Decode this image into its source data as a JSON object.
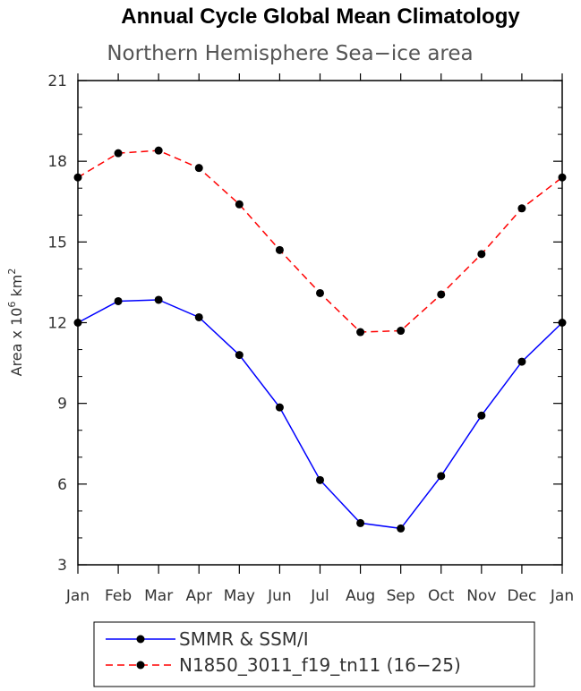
{
  "chart_data": {
    "type": "line",
    "title": "Annual Cycle Global Mean Climatology",
    "subtitle": "Northern Hemisphere Sea−ice area",
    "ylabel": {
      "prefix": "Area x 10",
      "exp1": "6",
      "mid": " km",
      "exp2": "2"
    },
    "ylim": [
      3,
      21
    ],
    "yticks": [
      "3",
      "6",
      "9",
      "12",
      "15",
      "18",
      "21"
    ],
    "categories": [
      "Jan",
      "Feb",
      "Mar",
      "Apr",
      "May",
      "Jun",
      "Jul",
      "Aug",
      "Sep",
      "Oct",
      "Nov",
      "Dec",
      "Jan"
    ],
    "series": [
      {
        "name": "SMMR & SSM/I",
        "color": "#0000ff",
        "dash": "solid",
        "values": [
          12.0,
          12.8,
          12.85,
          12.2,
          10.8,
          8.85,
          6.15,
          4.55,
          4.35,
          6.3,
          8.55,
          10.55,
          12.0
        ]
      },
      {
        "name": "N1850_3011_f19_tn11 (16−25)",
        "color": "#ff0000",
        "dash": "dashed",
        "values": [
          17.4,
          18.3,
          18.4,
          17.75,
          16.4,
          14.7,
          13.1,
          11.65,
          11.7,
          13.05,
          14.55,
          16.25,
          17.4
        ]
      }
    ],
    "grid": false,
    "legend_position": "bottom"
  }
}
